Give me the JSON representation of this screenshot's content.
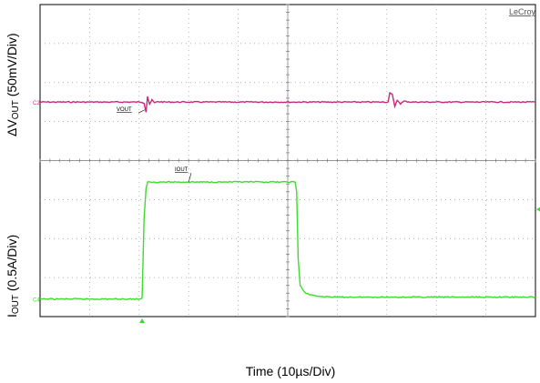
{
  "chart_data": {
    "type": "line",
    "brand": "LeCroy",
    "xlabel": "Time (10µs/Div)",
    "ylabel_top": {
      "prefix": "ΔV",
      "sub": "OUT",
      "suffix": " (50mV/Div)"
    },
    "ylabel_bottom": {
      "prefix": "I",
      "sub": "OUT",
      "suffix": " (0.5A/Div)"
    },
    "grid": {
      "x_divisions": 10,
      "y_divisions": 8
    },
    "x_range_div": [
      0,
      10
    ],
    "channels": [
      {
        "name": "VOUT",
        "marker": "C2",
        "label_text": "VOUT",
        "color": "#c8287a",
        "units": "div",
        "baseline_div": 5.5,
        "points": [
          [
            0,
            5.5
          ],
          [
            4.1,
            5.5
          ],
          [
            4.2,
            5.48
          ],
          [
            4.28,
            5.25
          ],
          [
            4.34,
            5.65
          ],
          [
            4.42,
            5.45
          ],
          [
            4.52,
            5.55
          ],
          [
            4.62,
            5.48
          ],
          [
            4.75,
            5.51
          ],
          [
            5.0,
            5.5
          ],
          [
            14.05,
            5.5
          ],
          [
            14.12,
            5.75
          ],
          [
            14.22,
            5.7
          ],
          [
            14.32,
            5.38
          ],
          [
            14.42,
            5.55
          ],
          [
            14.55,
            5.46
          ],
          [
            14.7,
            5.52
          ],
          [
            15,
            5.5
          ],
          [
            20,
            5.5
          ]
        ]
      },
      {
        "name": "IOUT",
        "marker": "C4",
        "label_text": "IOUT",
        "color": "#3ddc2e",
        "units": "div",
        "baseline_div": 0.45,
        "points": [
          [
            0,
            0.45
          ],
          [
            4.1,
            0.45
          ],
          [
            4.12,
            0.5
          ],
          [
            4.2,
            2.5
          ],
          [
            4.28,
            3.3
          ],
          [
            4.35,
            3.45
          ],
          [
            4.5,
            3.45
          ],
          [
            10.3,
            3.45
          ],
          [
            10.36,
            3.2
          ],
          [
            10.42,
            1.5
          ],
          [
            10.5,
            0.8
          ],
          [
            10.7,
            0.6
          ],
          [
            11.2,
            0.52
          ],
          [
            12,
            0.5
          ],
          [
            20,
            0.5
          ]
        ]
      }
    ]
  }
}
